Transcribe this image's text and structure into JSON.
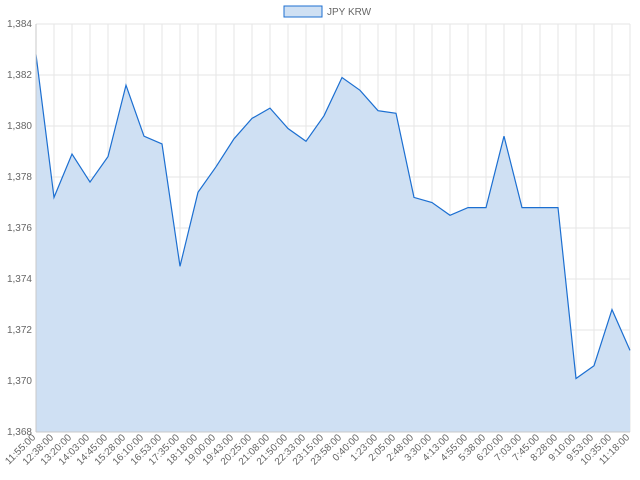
{
  "chart_data": {
    "type": "area",
    "legend": {
      "position": "top",
      "entries": [
        "JPY KRW"
      ]
    },
    "series": [
      {
        "name": "JPY KRW",
        "line_color": "#1c6fd1",
        "fill_color": "#cfe0f3",
        "x": [
          "11:55:00",
          "12:38:00",
          "13:20:00",
          "14:03:00",
          "14:45:00",
          "15:28:00",
          "16:10:00",
          "16:53:00",
          "17:35:00",
          "18:18:00",
          "19:00:00",
          "19:43:00",
          "20:25:00",
          "21:08:00",
          "21:50:00",
          "22:33:00",
          "23:15:00",
          "23:58:00",
          "0:40:00",
          "1:23:00",
          "2:05:00",
          "2:48:00",
          "3:30:00",
          "4:13:00",
          "4:55:00",
          "5:38:00",
          "6:20:00",
          "7:03:00",
          "7:45:00",
          "8:28:00",
          "9:10:00",
          "9:53:00",
          "10:35:00",
          "11:18:00"
        ],
        "values": [
          1382.8,
          1377.2,
          1378.9,
          1377.8,
          1378.8,
          1381.6,
          1379.6,
          1379.3,
          1374.5,
          1377.4,
          1378.4,
          1379.5,
          1380.3,
          1380.7,
          1379.9,
          1379.4,
          1380.4,
          1381.9,
          1381.4,
          1380.6,
          1380.5,
          1377.2,
          1377.0,
          1376.5,
          1376.8,
          1376.8,
          1379.6,
          1376.8,
          1376.8,
          1376.8,
          1370.1,
          1370.6,
          1372.8,
          1371.2
        ]
      }
    ],
    "ylim": [
      1368,
      1384
    ],
    "y_ticks": [
      "1,368",
      "1,370",
      "1,372",
      "1,374",
      "1,376",
      "1,378",
      "1,380",
      "1,382",
      "1,384"
    ],
    "x_ticks": [
      "11:55:00",
      "12:38:00",
      "13:20:00",
      "14:03:00",
      "14:45:00",
      "15:28:00",
      "16:10:00",
      "16:53:00",
      "17:35:00",
      "18:18:00",
      "19:00:00",
      "19:43:00",
      "20:25:00",
      "21:08:00",
      "21:50:00",
      "22:33:00",
      "23:15:00",
      "23:58:00",
      "0:40:00",
      "1:23:00",
      "2:05:00",
      "2:48:00",
      "3:30:00",
      "4:13:00",
      "4:55:00",
      "5:38:00",
      "6:20:00",
      "7:03:00",
      "7:45:00",
      "8:28:00",
      "9:10:00",
      "9:53:00",
      "10:35:00",
      "11:18:00"
    ],
    "grid": true
  }
}
